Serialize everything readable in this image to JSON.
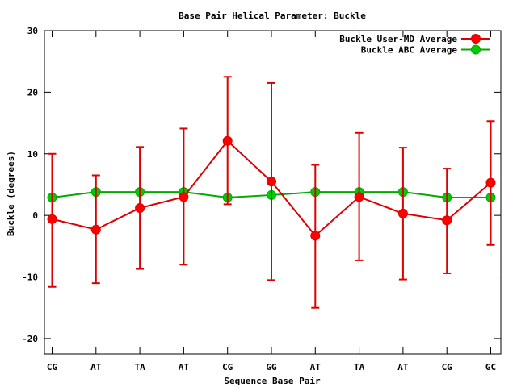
{
  "chart_data": {
    "type": "line",
    "title": "Base Pair Helical Parameter: Buckle",
    "xlabel": "Sequence Base Pair",
    "ylabel": "Buckle (degrees)",
    "categories": [
      "CG",
      "AT",
      "TA",
      "AT",
      "CG",
      "GG",
      "AT",
      "TA",
      "AT",
      "CG",
      "GC"
    ],
    "ylim": [
      -22.5,
      30
    ],
    "yticks": [
      -20,
      -10,
      0,
      10,
      20,
      30
    ],
    "grid": false,
    "legend_position": "top-right",
    "series": [
      {
        "name": "Buckle User-MD Average",
        "color": "#ff0000",
        "line_color": "#dd0000",
        "values": [
          -0.6,
          -2.3,
          1.2,
          3.0,
          12.1,
          5.5,
          -3.3,
          3.0,
          0.3,
          -0.8,
          5.3
        ],
        "err_low": [
          -11.6,
          -11.0,
          -8.7,
          -8.0,
          1.8,
          -10.5,
          -15.0,
          -7.3,
          -10.4,
          -9.4,
          -4.8
        ],
        "err_high": [
          10.0,
          6.5,
          11.1,
          14.1,
          22.5,
          21.5,
          8.2,
          13.4,
          11.0,
          7.6,
          15.3
        ]
      },
      {
        "name": "Buckle ABC Average",
        "color": "#00cc00",
        "line_color": "#00aa00",
        "values": [
          2.9,
          3.8,
          3.8,
          3.8,
          2.9,
          3.3,
          3.8,
          3.8,
          3.8,
          2.9,
          2.9
        ]
      }
    ]
  }
}
